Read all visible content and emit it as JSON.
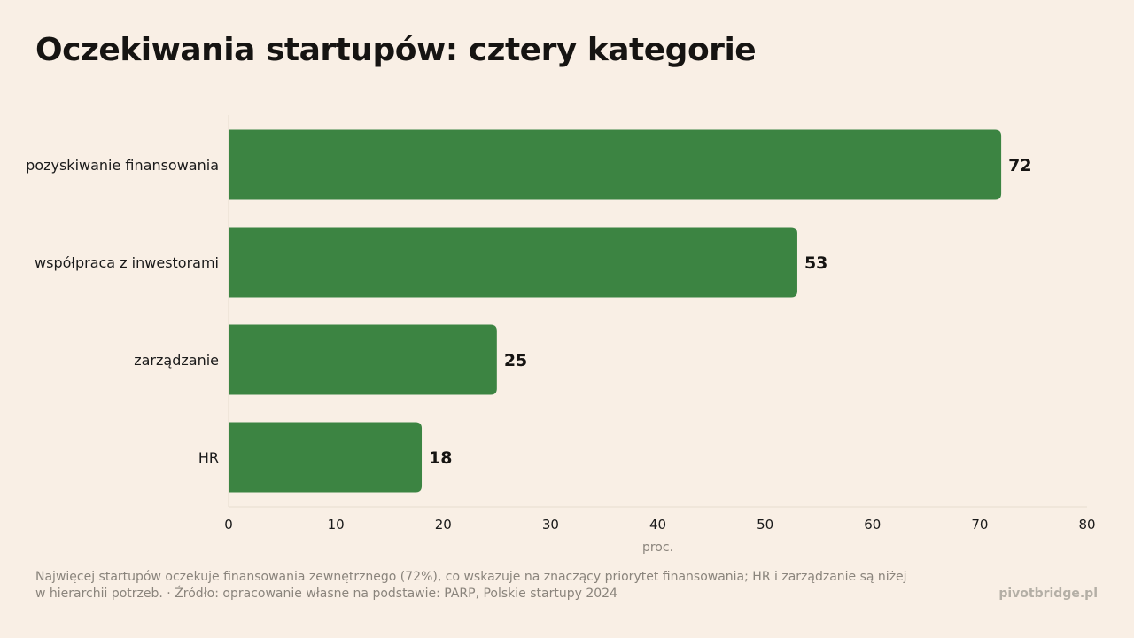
{
  "title": "Oczekiwania startupów: cztery kategorie",
  "footnote": "Najwięcej startupów oczekuje finansowania zewnętrznego (72%), co wskazuje na znaczący priorytet finansowania; HR i zarządzanie są niżej w hierarchii potrzeb. · Źródło: opracowanie własne na podstawie: PARP, Polskie startupy 2024",
  "brand": "pivotbridge.pl",
  "colors": {
    "background": "#f9efe5",
    "bar": "#3c8442",
    "axis": "#e6dccf"
  },
  "chart_data": {
    "type": "bar",
    "orientation": "horizontal",
    "categories": [
      "pozyskiwanie finansowania",
      "współpraca z inwestorami",
      "zarządzanie",
      "HR"
    ],
    "values": [
      72,
      53,
      25,
      18
    ],
    "xlabel": "proc.",
    "ylabel": "",
    "xlim": [
      0,
      80
    ],
    "xticks": [
      0,
      10,
      20,
      30,
      40,
      50,
      60,
      70,
      80
    ],
    "grid": false,
    "data_labels": true
  }
}
